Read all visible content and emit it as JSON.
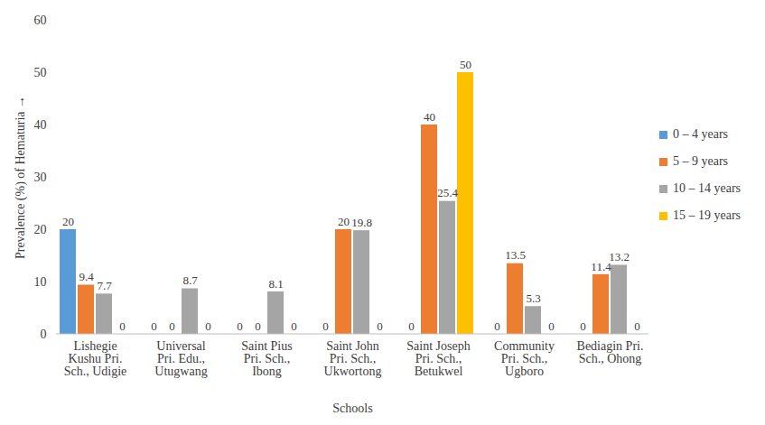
{
  "chart_data": {
    "type": "bar",
    "x_label": "Schools",
    "y_label": "Prevalence (%) of Hematuria",
    "categories": [
      "Lishegie Kushu Pri. Sch., Udigie",
      "Universal Pri. Edu., Utugwang",
      "Saint Pius Pri. Sch., Ibong",
      "Saint John Pri. Sch., Ukwortong",
      "Saint Joseph Pri. Sch., Betukwel",
      "Community Pri. Sch., Ugboro",
      "Bediagin Pri. Sch., Ohong"
    ],
    "series": [
      {
        "name": "0 – 4 years",
        "color": "#5B9BD5",
        "values": [
          20,
          0,
          0,
          0,
          0,
          0,
          0
        ]
      },
      {
        "name": "5 – 9 years",
        "color": "#ED7D31",
        "values": [
          9.4,
          0,
          0,
          20,
          40,
          13.5,
          11.4
        ]
      },
      {
        "name": "10 – 14 years",
        "color": "#A5A5A5",
        "values": [
          7.7,
          8.7,
          8.1,
          19.8,
          25.4,
          5.3,
          13.2
        ]
      },
      {
        "name": "15 – 19 years",
        "color": "#FFC000",
        "values": [
          0,
          0,
          0,
          0,
          50,
          0,
          0
        ]
      }
    ],
    "ylim": [
      0,
      60
    ],
    "yticks": [
      0,
      10,
      20,
      30,
      40,
      50,
      60
    ],
    "grid": false,
    "legend": "right",
    "data_labels": true
  }
}
